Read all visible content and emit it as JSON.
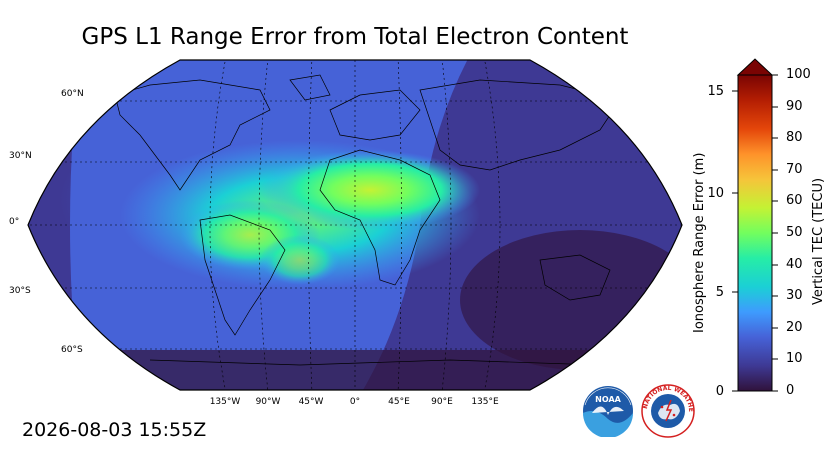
{
  "title": "GPS L1 Range Error from Total Electron Content",
  "timestamp": "2026-08-03 15:55Z",
  "map": {
    "projection": "robinson",
    "lat_labels": [
      "60°N",
      "30°N",
      "0°",
      "30°S",
      "60°S"
    ],
    "lon_labels": [
      "135°W",
      "90°W",
      "45°W",
      "0°",
      "45°E",
      "90°E",
      "135°E"
    ]
  },
  "colorbar": {
    "left_label": "Ionosphere Range Error (m)",
    "right_label": "Vertical TEC (TECU)",
    "left_ticks": [
      "15",
      "10",
      "5",
      "0"
    ],
    "right_ticks": [
      "100",
      "90",
      "80",
      "70",
      "60",
      "50",
      "40",
      "30",
      "20",
      "10",
      "0"
    ],
    "extend": "max",
    "colors": [
      "#30123b",
      "#3e3994",
      "#4662d7",
      "#3e9bfe",
      "#1bd0d5",
      "#26eda6",
      "#72fe5e",
      "#c4f234",
      "#f6c43a",
      "#fe922a",
      "#e4460a",
      "#b41e03",
      "#7a0403"
    ]
  },
  "logos": {
    "noaa_text": "NOAA",
    "nws_text": "NATIONAL WEATHER SERVICE"
  }
}
